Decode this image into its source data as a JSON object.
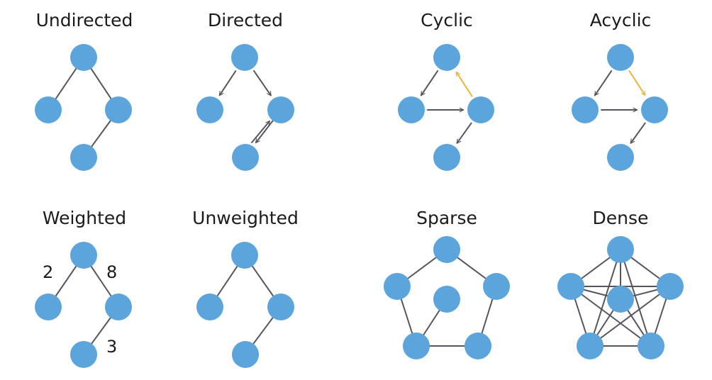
{
  "colors": {
    "node": "#5ba5dc",
    "edge": "#55555e",
    "highlight": "#e9b53b"
  },
  "graphs": [
    {
      "title": "Undirected"
    },
    {
      "title": "Directed"
    },
    {
      "title": "Cyclic"
    },
    {
      "title": "Acyclic"
    },
    {
      "title": "Weighted",
      "weights": [
        "2",
        "8",
        "3"
      ]
    },
    {
      "title": "Unweighted"
    },
    {
      "title": "Sparse"
    },
    {
      "title": "Dense"
    }
  ]
}
